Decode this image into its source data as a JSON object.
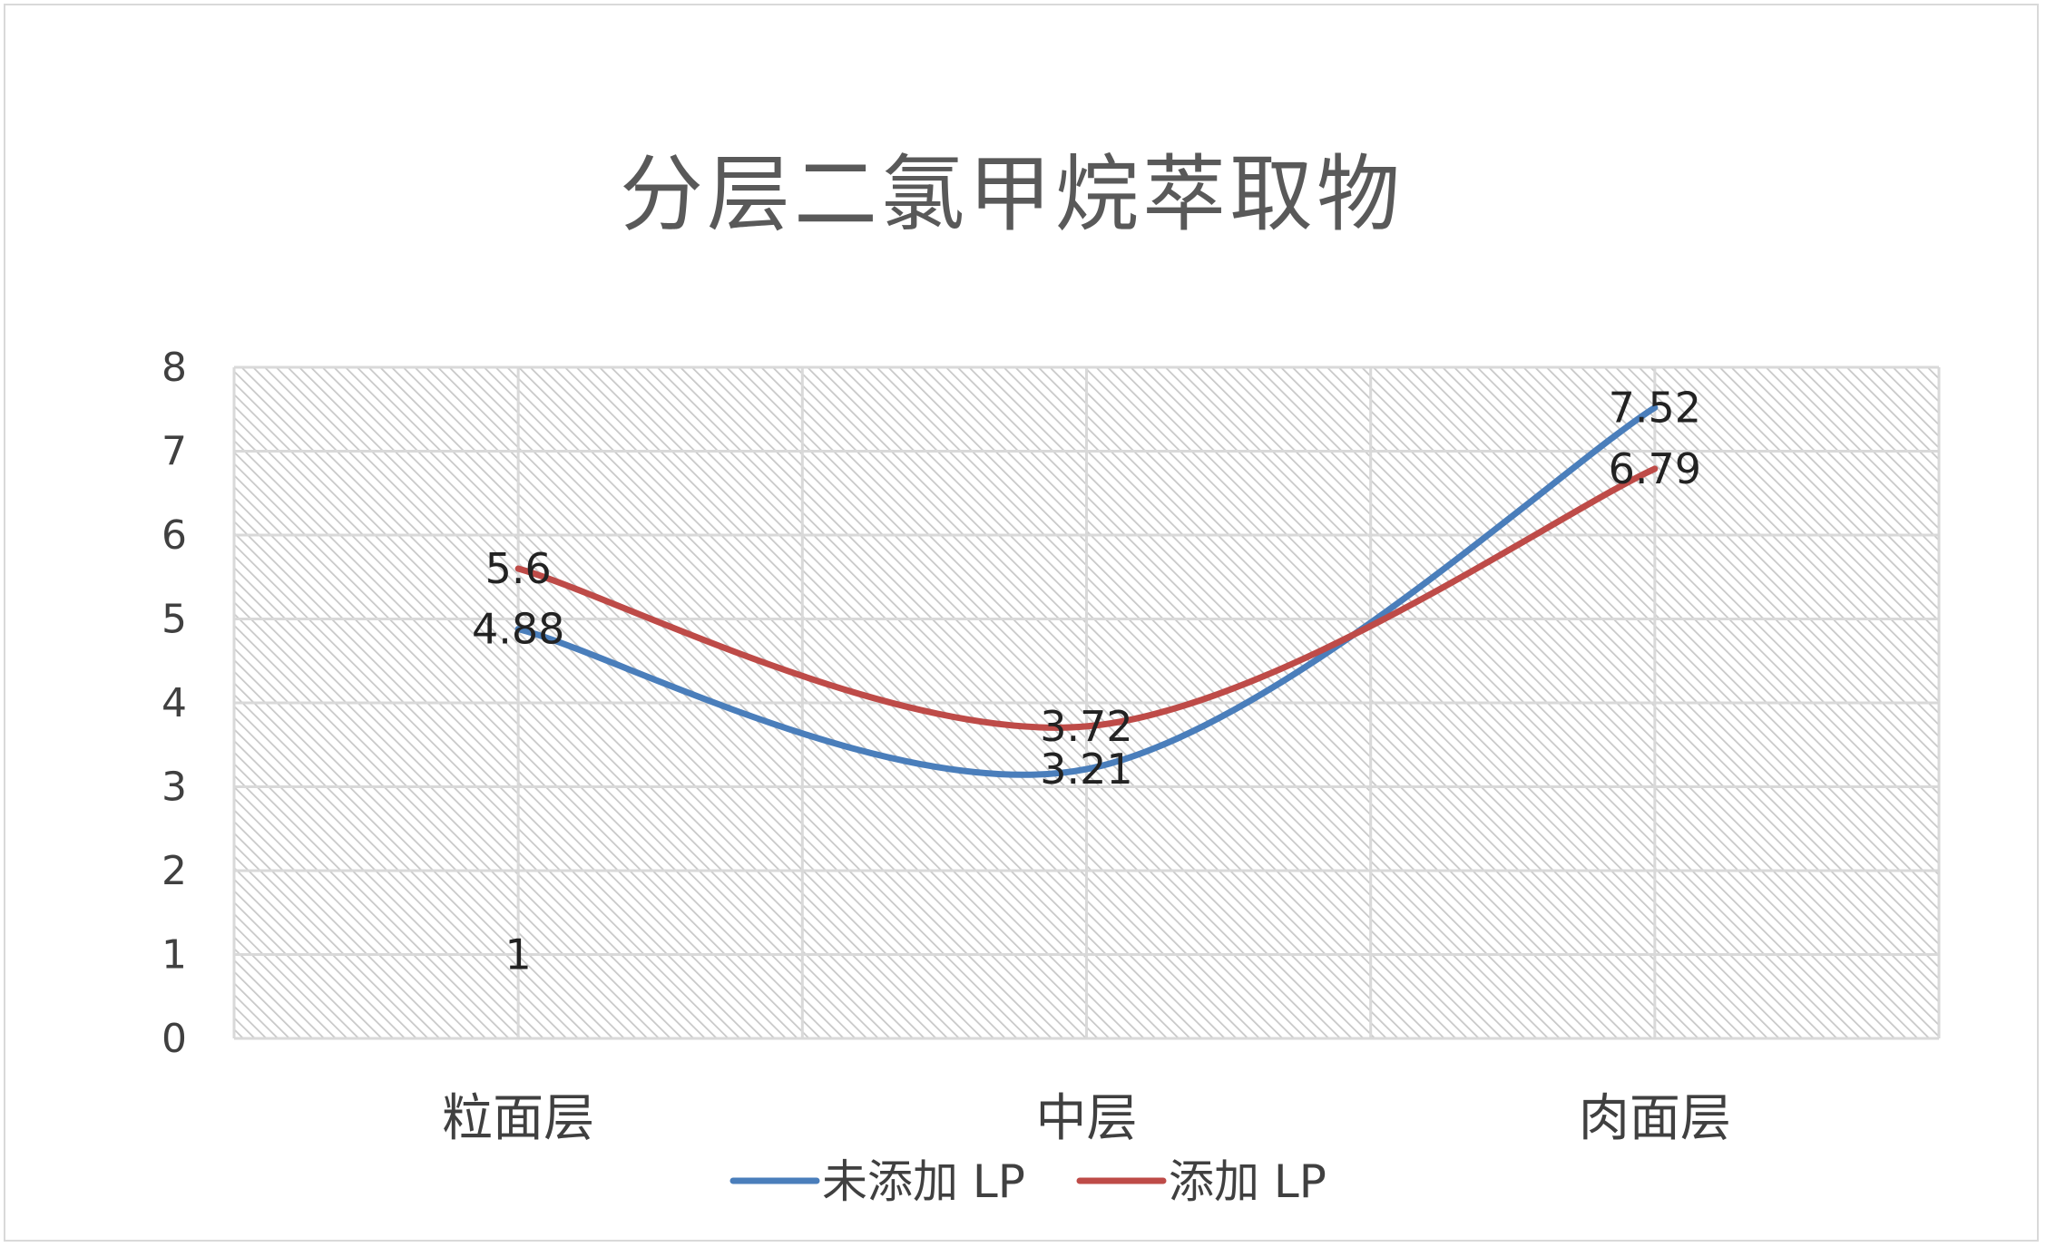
{
  "chart_data": {
    "type": "line",
    "title": "分层二氯甲烷萃取物",
    "categories": [
      "粒面层",
      "中层",
      "肉面层"
    ],
    "series": [
      {
        "name": "未添加 LP",
        "color": "#4a7ebb",
        "values": [
          4.88,
          3.21,
          7.52
        ]
      },
      {
        "name": "添加 LP",
        "color": "#be4b48",
        "values": [
          5.6,
          3.72,
          6.79
        ]
      }
    ],
    "extra_labels": [
      {
        "category": "粒面层",
        "value": 1,
        "text": "1"
      }
    ],
    "ylim": [
      0,
      8
    ],
    "yticks": [
      "0",
      "1",
      "2",
      "3",
      "4",
      "5",
      "6",
      "7",
      "8"
    ],
    "grid": true,
    "smooth": true,
    "legend_position": "bottom"
  }
}
